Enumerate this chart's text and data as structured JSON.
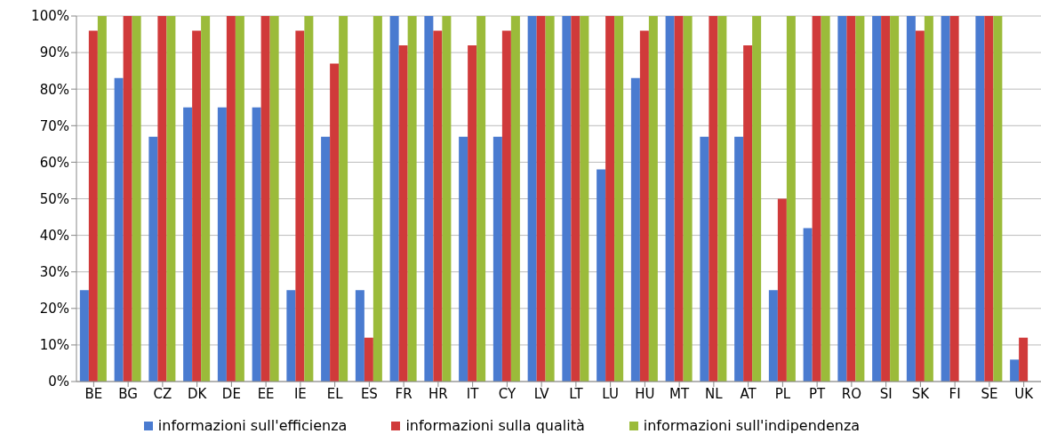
{
  "chart_data": {
    "type": "bar",
    "categories": [
      "BE",
      "BG",
      "CZ",
      "DK",
      "DE",
      "EE",
      "IE",
      "EL",
      "ES",
      "FR",
      "HR",
      "IT",
      "CY",
      "LV",
      "LT",
      "LU",
      "HU",
      "MT",
      "NL",
      "AT",
      "PL",
      "PT",
      "RO",
      "SI",
      "SK",
      "FI",
      "SE",
      "UK"
    ],
    "series": [
      {
        "name": "informazioni sull'efficienza",
        "color": "#4a7bd0",
        "values": [
          25,
          83,
          67,
          75,
          75,
          75,
          25,
          67,
          25,
          100,
          100,
          67,
          67,
          100,
          100,
          58,
          83,
          100,
          67,
          67,
          25,
          42,
          100,
          100,
          100,
          100,
          100,
          6
        ]
      },
      {
        "name": "informazioni sulla qualità",
        "color": "#d03a3a",
        "values": [
          96,
          100,
          100,
          96,
          100,
          100,
          96,
          87,
          12,
          92,
          96,
          92,
          96,
          100,
          100,
          100,
          96,
          100,
          100,
          92,
          50,
          100,
          100,
          100,
          96,
          100,
          100,
          12
        ]
      },
      {
        "name": "informazioni sull'indipendenza",
        "color": "#9bbb3a",
        "values": [
          100,
          100,
          100,
          100,
          100,
          100,
          100,
          100,
          100,
          100,
          100,
          100,
          100,
          100,
          100,
          100,
          100,
          100,
          100,
          100,
          100,
          100,
          100,
          100,
          100,
          0,
          100,
          0
        ]
      }
    ],
    "ylim": [
      0,
      100
    ],
    "yticks": [
      {
        "value": 0,
        "label": "0%"
      },
      {
        "value": 10,
        "label": "10%"
      },
      {
        "value": 20,
        "label": "20%"
      },
      {
        "value": 30,
        "label": "30%"
      },
      {
        "value": 40,
        "label": "40%"
      },
      {
        "value": 50,
        "label": "50%"
      },
      {
        "value": 60,
        "label": "60%"
      },
      {
        "value": 70,
        "label": "70%"
      },
      {
        "value": 80,
        "label": "80%"
      },
      {
        "value": 90,
        "label": "90%"
      },
      {
        "value": 100,
        "label": "100%"
      }
    ],
    "grid": "y",
    "legend": "bottom"
  }
}
